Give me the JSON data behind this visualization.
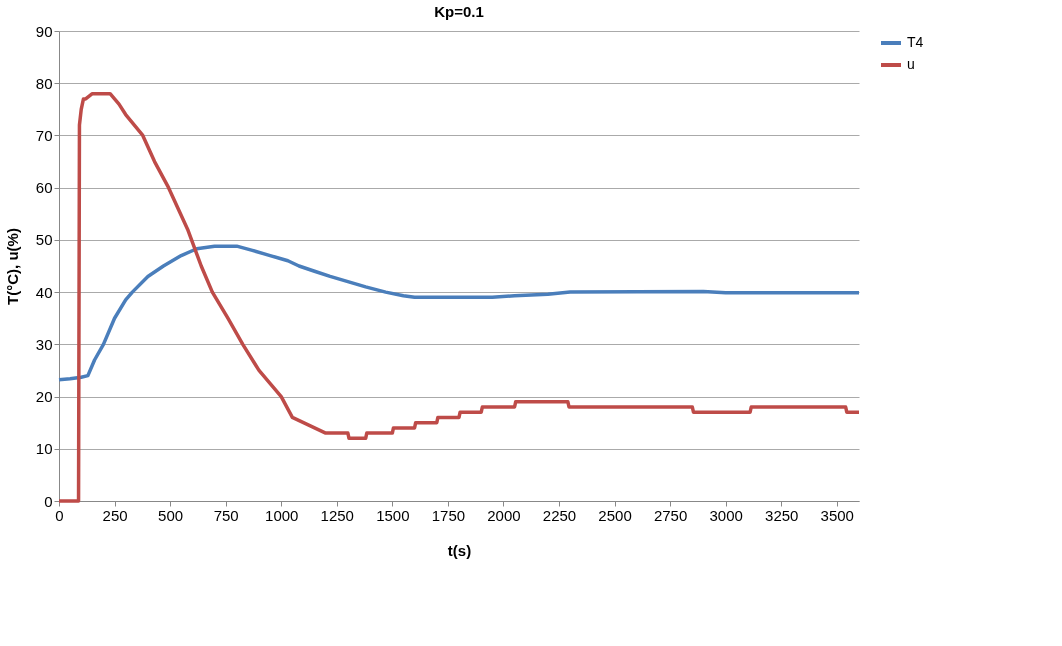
{
  "chart_data": {
    "type": "line",
    "title": "Kp=0.1",
    "xlabel": "t(s)",
    "ylabel": "T(°C), u(%)",
    "xlim": [
      0,
      3600
    ],
    "xticks": [
      0,
      250,
      500,
      750,
      1000,
      1250,
      1500,
      1750,
      2000,
      2250,
      2500,
      2750,
      3000,
      3250,
      3500
    ],
    "ylim": [
      0,
      90
    ],
    "yticks": [
      0,
      10,
      20,
      30,
      40,
      50,
      60,
      70,
      80,
      90
    ],
    "grid": "y",
    "legend": "right",
    "marker": "none",
    "line_style": "solid",
    "series": [
      {
        "name": "T4",
        "color": "#4a7ebb",
        "x": [
          0,
          50,
          100,
          130,
          160,
          200,
          250,
          300,
          330,
          400,
          470,
          550,
          620,
          700,
          800,
          870,
          950,
          1030,
          1080,
          1150,
          1220,
          1300,
          1380,
          1470,
          1550,
          1600,
          1950,
          2050,
          2200,
          2300,
          2900,
          3000,
          3600
        ],
        "values": [
          23.2,
          23.4,
          23.7,
          24,
          27,
          30,
          35,
          38.5,
          40,
          43,
          45,
          47,
          48.3,
          48.8,
          48.8,
          48,
          47,
          46,
          45,
          44,
          43,
          42,
          41,
          40,
          39.3,
          39,
          39,
          39.3,
          39.6,
          40,
          40.1,
          39.9,
          39.9
        ]
      },
      {
        "name": "u",
        "color": "#be4b48",
        "x": [
          0,
          88,
          92,
          100,
          110,
          120,
          150,
          230,
          250,
          270,
          300,
          377,
          430,
          493,
          579,
          640,
          690,
          760,
          827,
          900,
          1000,
          1050,
          1100,
          1150,
          1200,
          1300,
          1305,
          1380,
          1385,
          1500,
          1505,
          1600,
          1605,
          1700,
          1705,
          1800,
          1805,
          1900,
          1905,
          2050,
          2055,
          2290,
          2295,
          2850,
          2855,
          3110,
          3115,
          3540,
          3545,
          3600
        ],
        "values": [
          0,
          0,
          72,
          75,
          77,
          77,
          78,
          78,
          77,
          76,
          74,
          70,
          65,
          60,
          52,
          45,
          40,
          35,
          30,
          25,
          20,
          16,
          15,
          14,
          13,
          13,
          12,
          12,
          13,
          13,
          14,
          14,
          15,
          15,
          16,
          16,
          17,
          17,
          18,
          18,
          19,
          19,
          18,
          18,
          17,
          17,
          18,
          18,
          17,
          17
        ]
      }
    ]
  }
}
